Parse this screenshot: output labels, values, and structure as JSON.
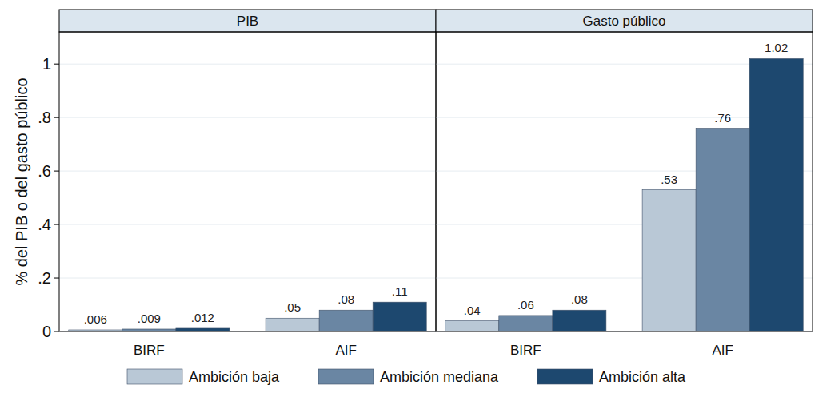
{
  "chart_data": [
    {
      "type": "bar",
      "title": "PIB",
      "ylabel": "% del PIB o del gasto público",
      "categories": [
        "BIRF",
        "AIF"
      ],
      "series": [
        {
          "name": "Ambición baja",
          "color": "#b9c8d6",
          "values": [
            0.006,
            0.05
          ],
          "value_labels": [
            ".006",
            ".05"
          ]
        },
        {
          "name": "Ambición mediana",
          "color": "#6a86a3",
          "values": [
            0.009,
            0.08
          ],
          "value_labels": [
            ".009",
            ".08"
          ]
        },
        {
          "name": "Ambición alta",
          "color": "#1d486f",
          "values": [
            0.012,
            0.11
          ],
          "value_labels": [
            ".012",
            ".11"
          ]
        }
      ],
      "ylim": [
        0,
        1.12
      ],
      "yticks": [
        0,
        {
          "value": 0.2,
          "label": ".2"
        },
        {
          "value": 0.4,
          "label": ".4"
        },
        {
          "value": 0.6,
          "label": ".6"
        },
        {
          "value": 0.8,
          "label": ".8"
        },
        1
      ],
      "grid": true,
      "data_labels": true,
      "legend": "bottom"
    },
    {
      "type": "bar",
      "title": "Gasto público",
      "categories": [
        "BIRF",
        "AIF"
      ],
      "series": [
        {
          "color": "#b9c8d6",
          "values": [
            0.04,
            0.53
          ],
          "value_labels": [
            ".04",
            ".53"
          ]
        },
        {
          "color": "#6a86a3",
          "values": [
            0.06,
            0.76
          ],
          "value_labels": [
            ".06",
            ".76"
          ]
        },
        {
          "color": "#1d486f",
          "values": [
            0.08,
            1.02
          ],
          "value_labels": [
            ".08",
            "1.02"
          ]
        }
      ],
      "ylim": [
        0,
        1.12
      ],
      "yticks": [
        0,
        {
          "value": 0.2,
          "label": ".2"
        },
        {
          "value": 0.4,
          "label": ".4"
        },
        {
          "value": 0.6,
          "label": ".6"
        },
        {
          "value": 0.8,
          "label": ".8"
        },
        1
      ],
      "grid": true,
      "data_labels": true,
      "tick_labels": "x"
    }
  ]
}
